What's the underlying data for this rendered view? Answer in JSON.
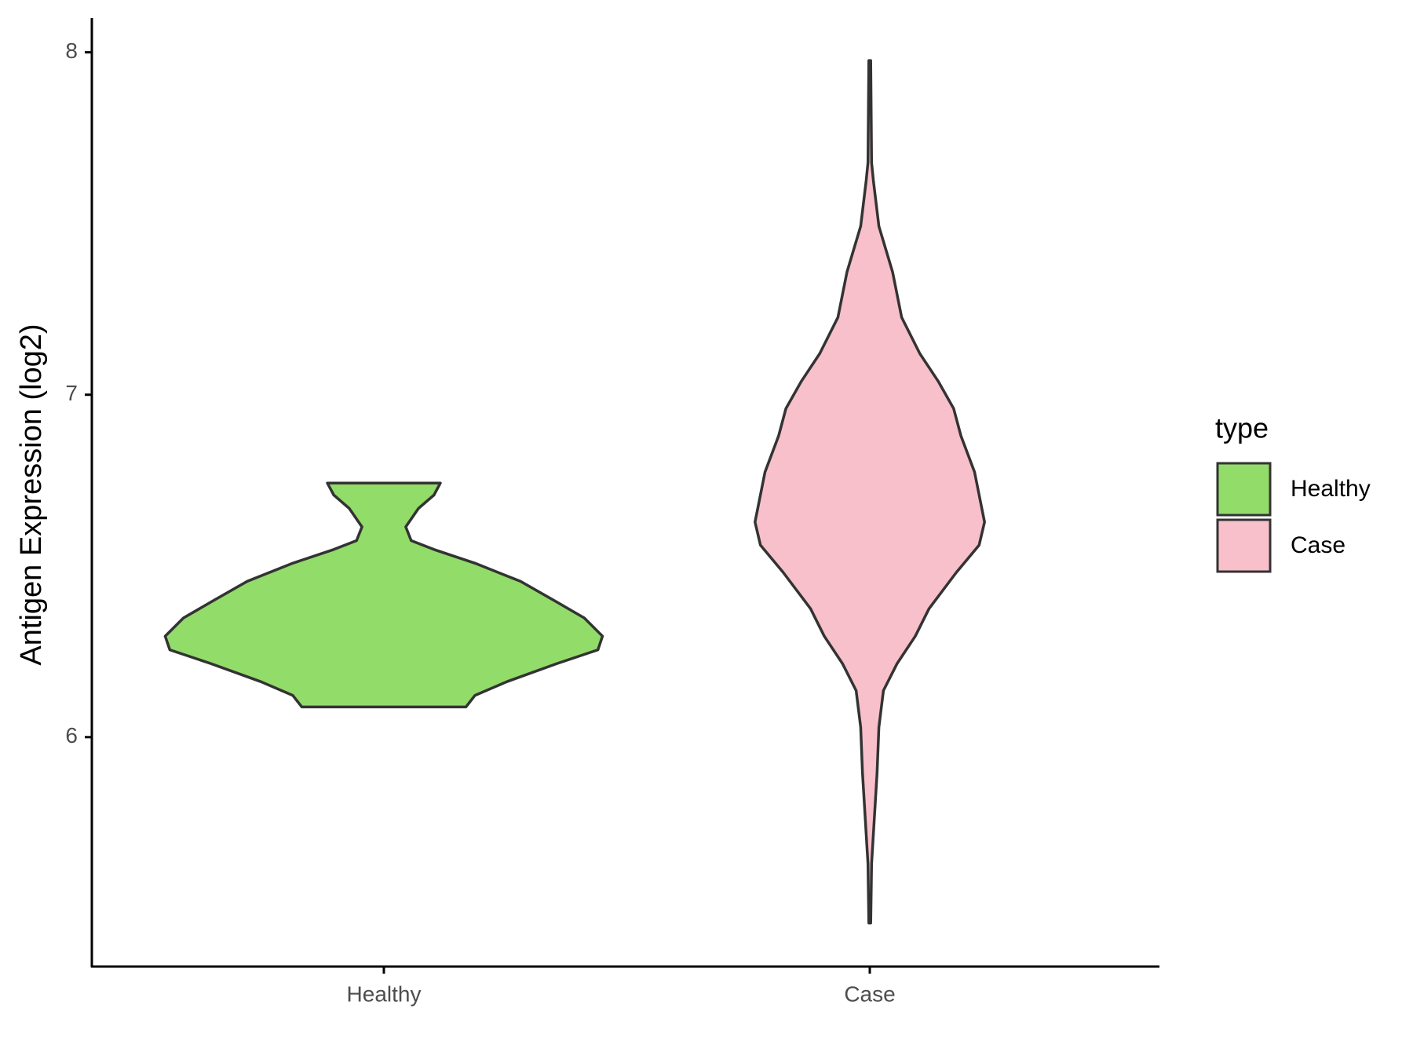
{
  "chart_data": {
    "type": "violin",
    "y_label": "Antigen Expression (log2)",
    "legend_title": "type",
    "categories": [
      "Healthy",
      "Case"
    ],
    "ylim": [
      5.33,
      8.1
    ],
    "yticks": [
      6,
      7,
      8
    ],
    "series": [
      {
        "name": "Healthy",
        "color": "#92dc6a",
        "y": [
          6.742,
          6.707,
          6.668,
          6.614,
          6.574,
          6.548,
          6.508,
          6.455,
          6.402,
          6.348,
          6.295,
          6.255,
          6.215,
          6.162,
          6.122,
          6.088
        ],
        "density": [
          0.62,
          0.55,
          0.38,
          0.24,
          0.3,
          0.55,
          1.0,
          1.5,
          1.85,
          2.2,
          2.4,
          2.35,
          1.9,
          1.35,
          1.0,
          0.9
        ]
      },
      {
        "name": "Case",
        "color": "#f8c0cb",
        "y": [
          7.976,
          7.678,
          7.625,
          7.492,
          7.359,
          7.226,
          7.12,
          7.04,
          6.96,
          6.88,
          6.774,
          6.628,
          6.561,
          6.481,
          6.375,
          6.295,
          6.215,
          6.136,
          6.029,
          5.896,
          5.763,
          5.63,
          5.457
        ],
        "density": [
          0.01,
          0.02,
          0.04,
          0.1,
          0.25,
          0.35,
          0.55,
          0.75,
          0.92,
          1.0,
          1.15,
          1.26,
          1.2,
          0.95,
          0.65,
          0.5,
          0.3,
          0.15,
          0.1,
          0.08,
          0.05,
          0.02,
          0.01
        ]
      }
    ]
  }
}
